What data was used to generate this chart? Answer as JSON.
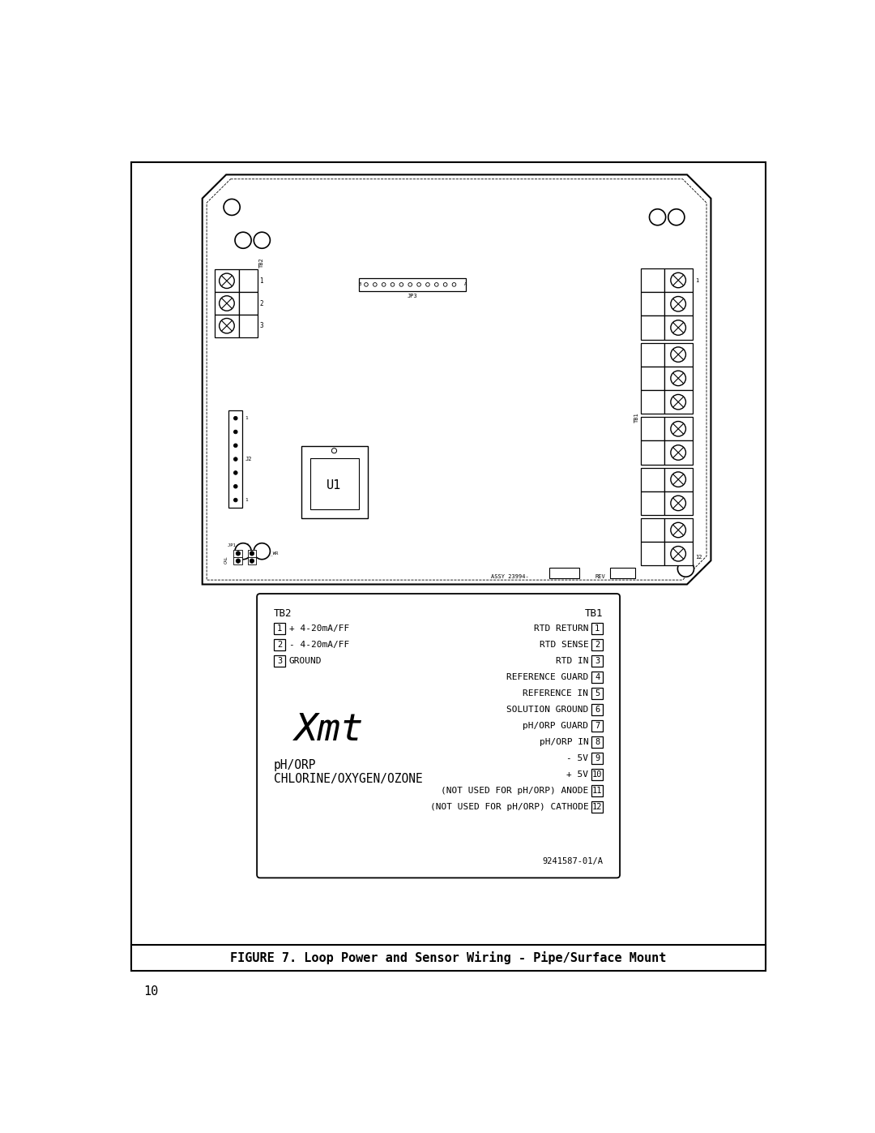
{
  "page_bg": "#ffffff",
  "figure_caption": "FIGURE 7. Loop Power and Sensor Wiring - Pipe/Surface Mount",
  "page_number": "10",
  "tb2_labels": [
    "1",
    "2",
    "3"
  ],
  "tb2_descriptions": [
    "+ 4-20mA/FF",
    "- 4-20mA/FF",
    "GROUND"
  ],
  "tb1_labels": [
    "1",
    "2",
    "3",
    "4",
    "5",
    "6",
    "7",
    "8",
    "9",
    "10",
    "11",
    "12"
  ],
  "tb1_descriptions": [
    "RTD RETURN",
    "RTD SENSE",
    "RTD IN",
    "REFERENCE GUARD",
    "REFERENCE IN",
    "SOLUTION GROUND",
    "pH/ORP GUARD",
    "pH/ORP IN",
    "- 5V",
    "+ 5V",
    "(NOT USED FOR pH/ORP) ANODE",
    "(NOT USED FOR pH/ORP) CATHODE"
  ],
  "xmt_logo": "Xmt",
  "sensor_type1": "pH/ORP",
  "sensor_type2": "CHLORINE/OXYGEN/OZONE",
  "part_number": "9241587-01/A",
  "tb2_header": "TB2",
  "tb1_header": "TB1",
  "jp3_label": "JP3",
  "j2_label": "J2",
  "u1_label": "U1",
  "tb1_board_label": "TB1",
  "tb2_board_label": "TB2",
  "assy_text": "ASSY 23994-",
  "rev_text": "REV",
  "ee_wr_text": "EE_WR",
  "jp1_jp2_text": "JP1  JP2",
  "cal_text": "CAL"
}
